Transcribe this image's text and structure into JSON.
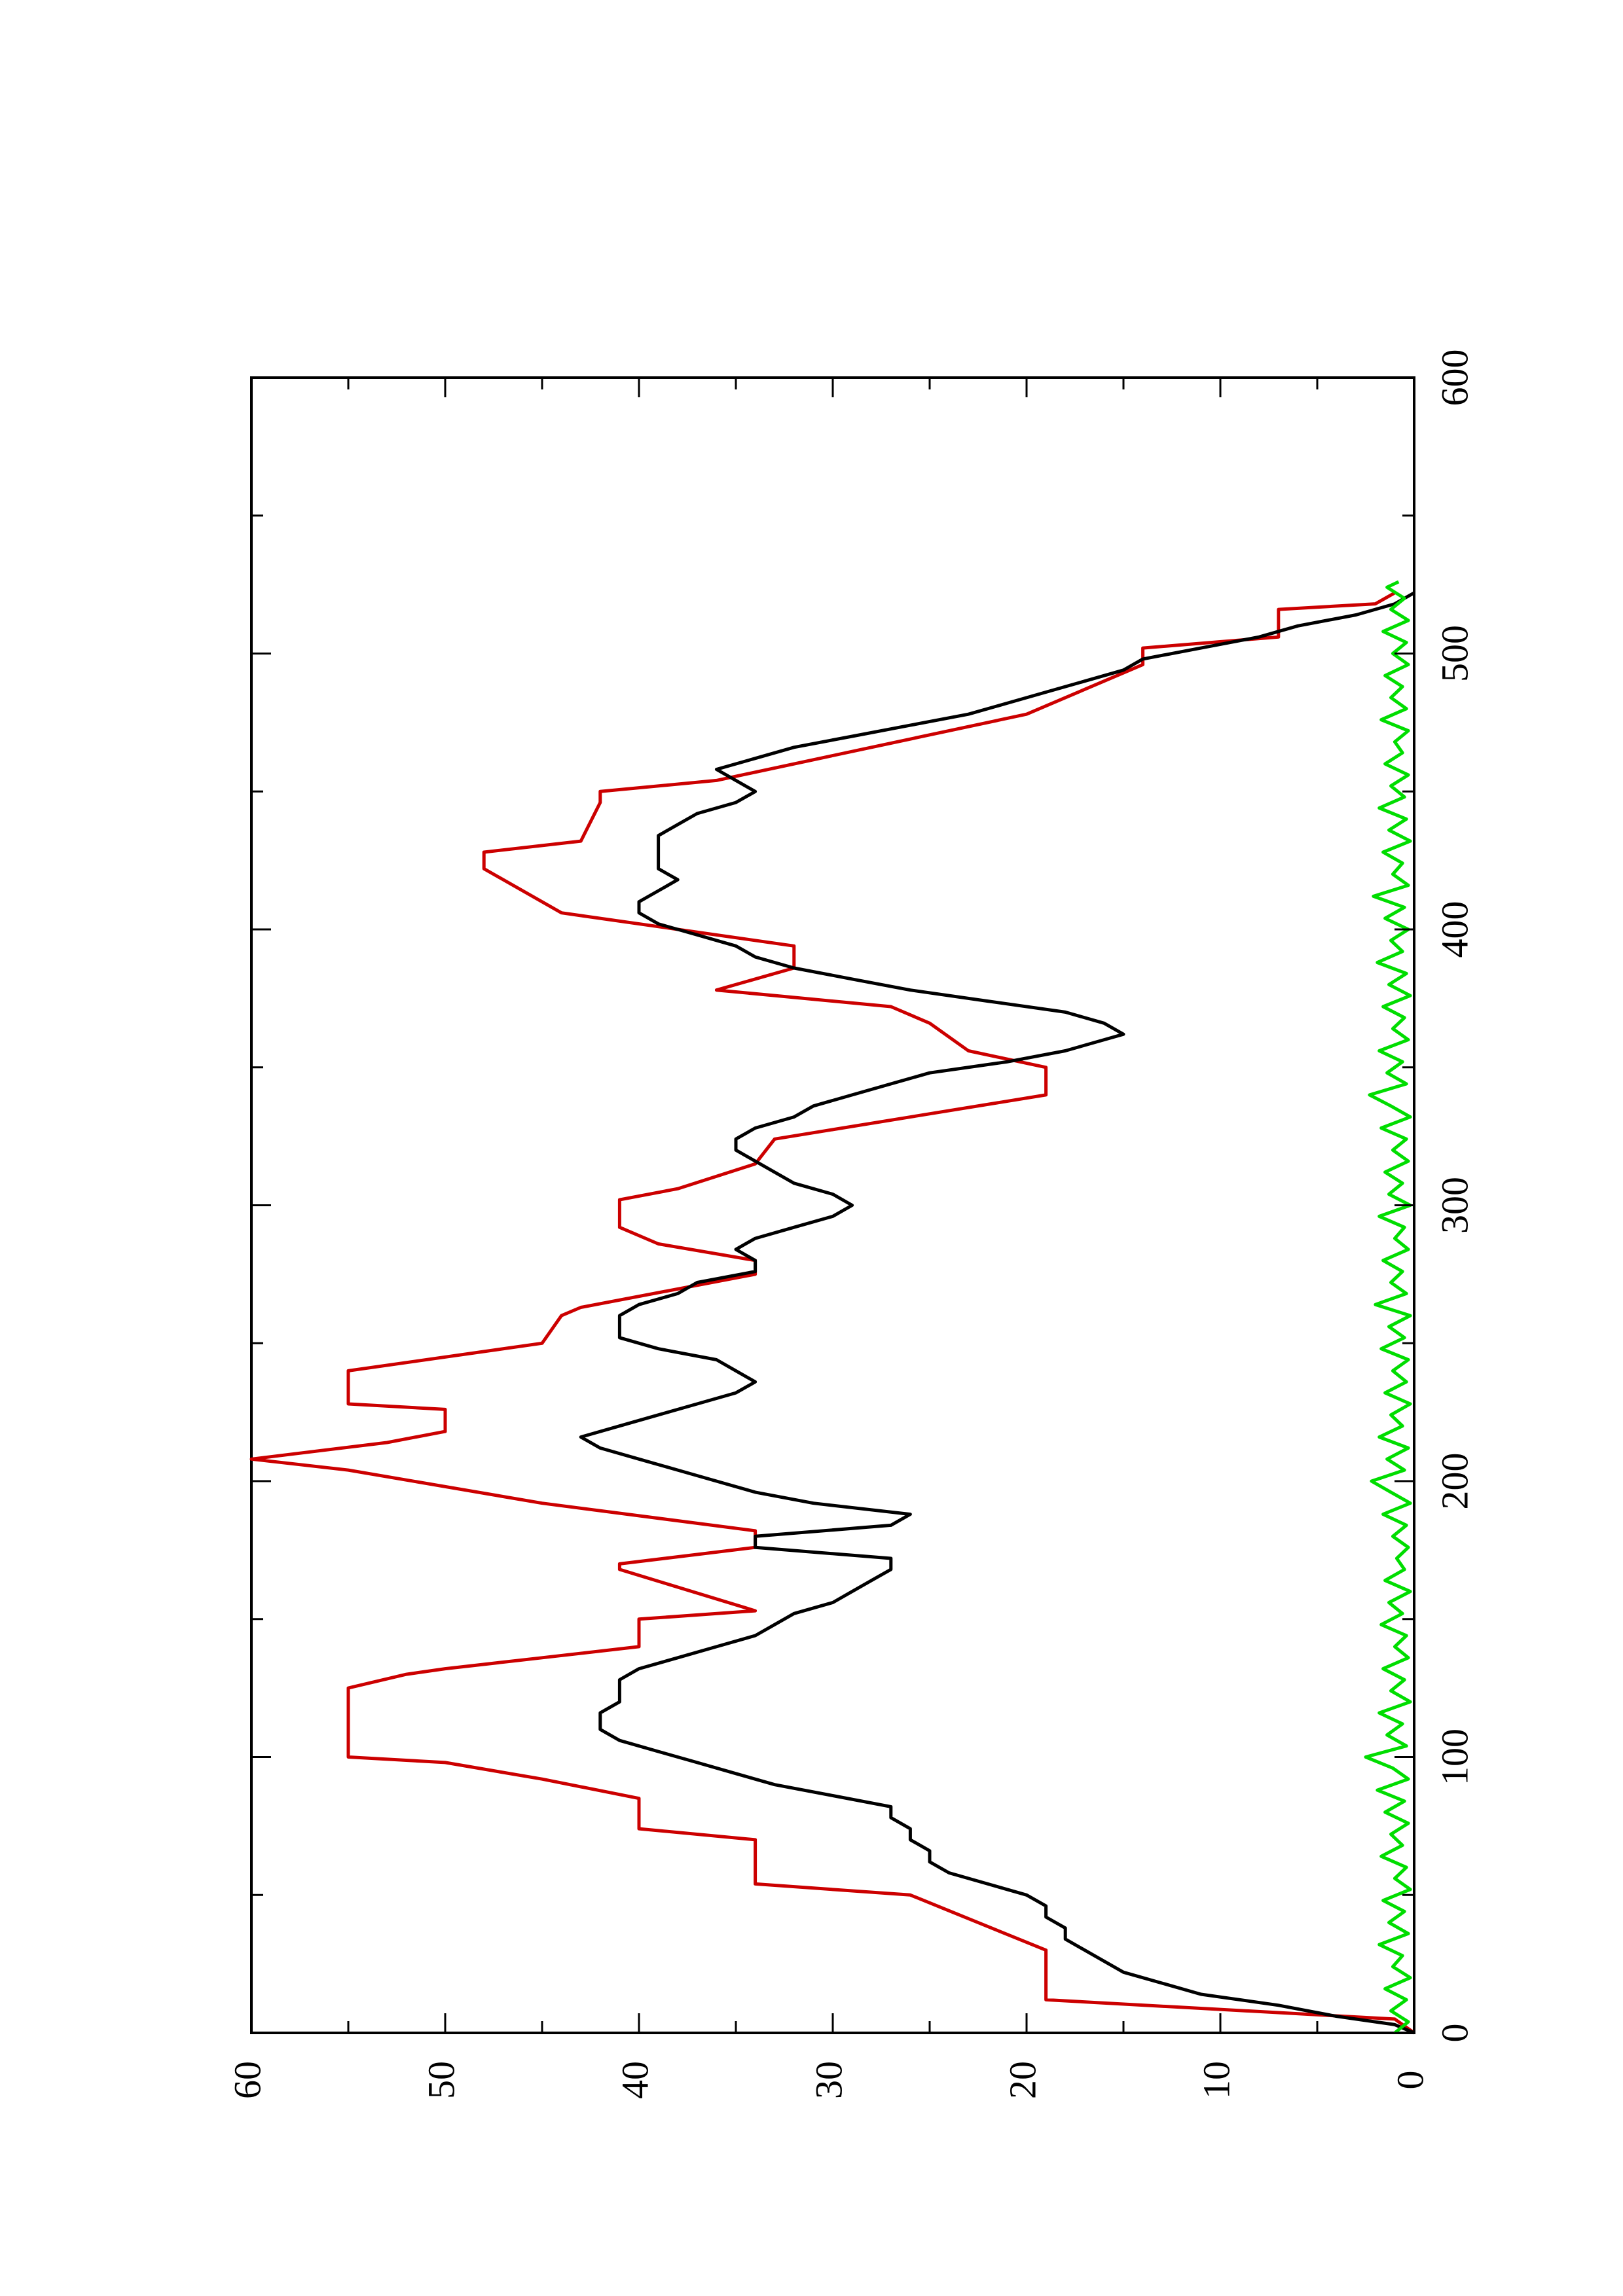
{
  "chart_data": {
    "type": "line",
    "orientation": "rotated-90-ccw",
    "title": "",
    "xlabel": "",
    "ylabel": "",
    "xlim": [
      0,
      600
    ],
    "ylim": [
      0,
      60
    ],
    "x_ticks": [
      0,
      100,
      200,
      300,
      400,
      500,
      600
    ],
    "y_ticks": [
      0,
      10,
      20,
      30,
      40,
      50,
      60
    ],
    "x_tick_labels": [
      "0",
      "100",
      "200",
      "300",
      "400",
      "500",
      "600"
    ],
    "y_tick_labels": [
      "0",
      "10",
      "20",
      "30",
      "40",
      "50",
      "60"
    ],
    "grid": false,
    "legend": "none",
    "series": [
      {
        "color": "#cc0000",
        "style": "step-ramp",
        "points": [
          [
            0,
            0
          ],
          [
            5,
            1
          ],
          [
            12,
            19
          ],
          [
            30,
            19
          ],
          [
            50,
            26
          ],
          [
            54,
            34
          ],
          [
            70,
            34
          ],
          [
            74,
            40
          ],
          [
            85,
            40
          ],
          [
            92,
            45
          ],
          [
            98,
            50
          ],
          [
            100,
            55
          ],
          [
            125,
            55
          ],
          [
            130,
            52
          ],
          [
            132,
            50
          ],
          [
            136,
            45
          ],
          [
            140,
            40
          ],
          [
            150,
            40
          ],
          [
            153,
            34
          ],
          [
            168,
            41
          ],
          [
            170,
            41
          ],
          [
            176,
            34
          ],
          [
            182,
            34
          ],
          [
            192,
            45
          ],
          [
            204,
            55
          ],
          [
            208,
            60
          ],
          [
            214,
            53
          ],
          [
            218,
            50
          ],
          [
            226,
            50
          ],
          [
            228,
            55
          ],
          [
            240,
            55
          ],
          [
            250,
            45
          ],
          [
            260,
            44
          ],
          [
            263,
            43
          ],
          [
            275,
            34
          ],
          [
            280,
            34
          ],
          [
            286,
            39
          ],
          [
            292,
            41
          ],
          [
            302,
            41
          ],
          [
            306,
            38
          ],
          [
            315,
            34
          ],
          [
            324,
            33
          ],
          [
            340,
            19
          ],
          [
            350,
            19
          ],
          [
            356,
            23
          ],
          [
            366,
            25
          ],
          [
            372,
            27
          ],
          [
            378,
            36
          ],
          [
            386,
            32
          ],
          [
            394,
            32
          ],
          [
            400,
            38
          ],
          [
            406,
            44
          ],
          [
            422,
            48
          ],
          [
            428,
            48
          ],
          [
            432,
            43
          ],
          [
            446,
            42
          ],
          [
            450,
            42
          ],
          [
            454,
            36
          ],
          [
            478,
            20
          ],
          [
            496,
            14
          ],
          [
            502,
            14
          ],
          [
            506,
            7
          ],
          [
            516,
            7
          ],
          [
            518,
            2
          ],
          [
            522,
            1
          ]
        ]
      },
      {
        "color": "#000000",
        "style": "line",
        "points": [
          [
            0,
            0
          ],
          [
            3,
            1
          ],
          [
            6,
            4
          ],
          [
            10,
            7
          ],
          [
            14,
            11
          ],
          [
            18,
            13
          ],
          [
            22,
            15
          ],
          [
            26,
            16
          ],
          [
            30,
            17
          ],
          [
            34,
            18
          ],
          [
            38,
            18
          ],
          [
            42,
            19
          ],
          [
            46,
            19
          ],
          [
            50,
            20
          ],
          [
            54,
            22
          ],
          [
            58,
            24
          ],
          [
            62,
            25
          ],
          [
            66,
            25
          ],
          [
            70,
            26
          ],
          [
            74,
            26
          ],
          [
            78,
            27
          ],
          [
            82,
            27
          ],
          [
            86,
            30
          ],
          [
            90,
            33
          ],
          [
            94,
            35
          ],
          [
            98,
            37
          ],
          [
            102,
            39
          ],
          [
            106,
            41
          ],
          [
            110,
            42
          ],
          [
            116,
            42
          ],
          [
            120,
            41
          ],
          [
            124,
            41
          ],
          [
            128,
            41
          ],
          [
            132,
            40
          ],
          [
            136,
            38
          ],
          [
            140,
            36
          ],
          [
            144,
            34
          ],
          [
            148,
            33
          ],
          [
            152,
            32
          ],
          [
            156,
            30
          ],
          [
            160,
            29
          ],
          [
            164,
            28
          ],
          [
            168,
            27
          ],
          [
            172,
            27
          ],
          [
            176,
            34
          ],
          [
            180,
            34
          ],
          [
            184,
            27
          ],
          [
            188,
            26
          ],
          [
            192,
            31
          ],
          [
            196,
            34
          ],
          [
            200,
            36
          ],
          [
            204,
            38
          ],
          [
            208,
            40
          ],
          [
            212,
            42
          ],
          [
            216,
            43
          ],
          [
            220,
            41
          ],
          [
            224,
            39
          ],
          [
            228,
            37
          ],
          [
            232,
            35
          ],
          [
            236,
            34
          ],
          [
            240,
            35
          ],
          [
            244,
            36
          ],
          [
            248,
            39
          ],
          [
            252,
            41
          ],
          [
            256,
            41
          ],
          [
            260,
            41
          ],
          [
            264,
            40
          ],
          [
            268,
            38
          ],
          [
            272,
            37
          ],
          [
            276,
            34
          ],
          [
            280,
            34
          ],
          [
            284,
            35
          ],
          [
            288,
            34
          ],
          [
            292,
            32
          ],
          [
            296,
            30
          ],
          [
            300,
            29
          ],
          [
            304,
            30
          ],
          [
            308,
            32
          ],
          [
            312,
            33
          ],
          [
            316,
            34
          ],
          [
            320,
            35
          ],
          [
            324,
            35
          ],
          [
            328,
            34
          ],
          [
            332,
            32
          ],
          [
            336,
            31
          ],
          [
            340,
            29
          ],
          [
            344,
            27
          ],
          [
            348,
            25
          ],
          [
            352,
            21
          ],
          [
            356,
            18
          ],
          [
            360,
            16
          ],
          [
            362,
            15
          ],
          [
            366,
            16
          ],
          [
            370,
            18
          ],
          [
            374,
            22
          ],
          [
            378,
            26
          ],
          [
            382,
            29
          ],
          [
            386,
            32
          ],
          [
            390,
            34
          ],
          [
            394,
            35
          ],
          [
            398,
            37
          ],
          [
            402,
            39
          ],
          [
            406,
            40
          ],
          [
            410,
            40
          ],
          [
            414,
            39
          ],
          [
            418,
            38
          ],
          [
            422,
            39
          ],
          [
            426,
            39
          ],
          [
            430,
            39
          ],
          [
            434,
            39
          ],
          [
            438,
            38
          ],
          [
            442,
            37
          ],
          [
            446,
            35
          ],
          [
            450,
            34
          ],
          [
            454,
            35
          ],
          [
            458,
            36
          ],
          [
            462,
            34
          ],
          [
            466,
            32
          ],
          [
            470,
            29
          ],
          [
            474,
            26
          ],
          [
            478,
            23
          ],
          [
            482,
            21
          ],
          [
            486,
            19
          ],
          [
            490,
            17
          ],
          [
            494,
            15
          ],
          [
            498,
            14
          ],
          [
            502,
            11
          ],
          [
            506,
            8
          ],
          [
            510,
            6
          ],
          [
            514,
            3
          ],
          [
            518,
            1
          ],
          [
            522,
            0
          ]
        ]
      },
      {
        "color": "#00dd00",
        "style": "noise",
        "points": [
          [
            0,
            1
          ],
          [
            4,
            0.3
          ],
          [
            8,
            1.2
          ],
          [
            12,
            0.4
          ],
          [
            16,
            1.5
          ],
          [
            20,
            0.2
          ],
          [
            24,
            1.1
          ],
          [
            28,
            0.6
          ],
          [
            32,
            1.8
          ],
          [
            36,
            0.3
          ],
          [
            40,
            1.3
          ],
          [
            44,
            0.5
          ],
          [
            48,
            1.6
          ],
          [
            52,
            0.2
          ],
          [
            56,
            1.0
          ],
          [
            60,
            0.4
          ],
          [
            64,
            1.7
          ],
          [
            68,
            0.6
          ],
          [
            72,
            1.2
          ],
          [
            76,
            0.3
          ],
          [
            80,
            1.5
          ],
          [
            84,
            0.5
          ],
          [
            88,
            1.9
          ],
          [
            92,
            0.3
          ],
          [
            96,
            1.1
          ],
          [
            100,
            2.5
          ],
          [
            104,
            0.4
          ],
          [
            108,
            1.4
          ],
          [
            112,
            0.6
          ],
          [
            116,
            1.8
          ],
          [
            120,
            0.2
          ],
          [
            124,
            1.2
          ],
          [
            128,
            0.5
          ],
          [
            132,
            1.6
          ],
          [
            136,
            0.3
          ],
          [
            140,
            1.0
          ],
          [
            144,
            0.4
          ],
          [
            148,
            1.7
          ],
          [
            152,
            0.6
          ],
          [
            156,
            1.3
          ],
          [
            160,
            0.2
          ],
          [
            164,
            1.5
          ],
          [
            168,
            0.5
          ],
          [
            172,
            0.9
          ],
          [
            176,
            0.3
          ],
          [
            180,
            1.1
          ],
          [
            184,
            0.4
          ],
          [
            188,
            1.6
          ],
          [
            192,
            0.2
          ],
          [
            196,
            1.2
          ],
          [
            200,
            2.2
          ],
          [
            204,
            0.5
          ],
          [
            208,
            1.4
          ],
          [
            212,
            0.3
          ],
          [
            216,
            1.8
          ],
          [
            220,
            0.6
          ],
          [
            224,
            1.2
          ],
          [
            228,
            0.2
          ],
          [
            232,
            1.5
          ],
          [
            236,
            0.4
          ],
          [
            240,
            1.1
          ],
          [
            244,
            0.3
          ],
          [
            248,
            1.7
          ],
          [
            252,
            0.5
          ],
          [
            256,
            1.3
          ],
          [
            260,
            0.2
          ],
          [
            264,
            2.0
          ],
          [
            268,
            0.4
          ],
          [
            272,
            1.2
          ],
          [
            276,
            0.6
          ],
          [
            280,
            1.6
          ],
          [
            284,
            0.3
          ],
          [
            288,
            1.0
          ],
          [
            292,
            0.5
          ],
          [
            296,
            1.8
          ],
          [
            300,
            0.2
          ],
          [
            304,
            1.3
          ],
          [
            308,
            0.6
          ],
          [
            312,
            1.5
          ],
          [
            316,
            0.3
          ],
          [
            320,
            1.1
          ],
          [
            324,
            0.4
          ],
          [
            328,
            1.7
          ],
          [
            332,
            0.2
          ],
          [
            336,
            1.2
          ],
          [
            340,
            2.3
          ],
          [
            344,
            0.4
          ],
          [
            348,
            1.4
          ],
          [
            352,
            0.6
          ],
          [
            356,
            1.8
          ],
          [
            360,
            0.3
          ],
          [
            364,
            1.1
          ],
          [
            368,
            0.5
          ],
          [
            372,
            1.6
          ],
          [
            376,
            0.2
          ],
          [
            380,
            1.3
          ],
          [
            384,
            0.4
          ],
          [
            388,
            1.9
          ],
          [
            392,
            0.6
          ],
          [
            396,
            1.2
          ],
          [
            400,
            0.3
          ],
          [
            404,
            1.5
          ],
          [
            408,
            0.5
          ],
          [
            412,
            2.1
          ],
          [
            416,
            0.3
          ],
          [
            420,
            1.1
          ],
          [
            424,
            0.6
          ],
          [
            428,
            1.6
          ],
          [
            432,
            0.2
          ],
          [
            436,
            1.3
          ],
          [
            440,
            0.4
          ],
          [
            444,
            1.8
          ],
          [
            448,
            0.5
          ],
          [
            452,
            1.2
          ],
          [
            456,
            0.3
          ],
          [
            460,
            1.5
          ],
          [
            464,
            0.6
          ],
          [
            468,
            1.0
          ],
          [
            472,
            0.3
          ],
          [
            476,
            1.7
          ],
          [
            480,
            0.4
          ],
          [
            484,
            1.2
          ],
          [
            488,
            0.6
          ],
          [
            492,
            1.5
          ],
          [
            496,
            0.3
          ],
          [
            500,
            1.1
          ],
          [
            504,
            0.4
          ],
          [
            508,
            1.6
          ],
          [
            512,
            0.3
          ],
          [
            516,
            1.2
          ],
          [
            520,
            0.5
          ],
          [
            524,
            1.4
          ],
          [
            526,
            0.8
          ]
        ]
      }
    ]
  }
}
